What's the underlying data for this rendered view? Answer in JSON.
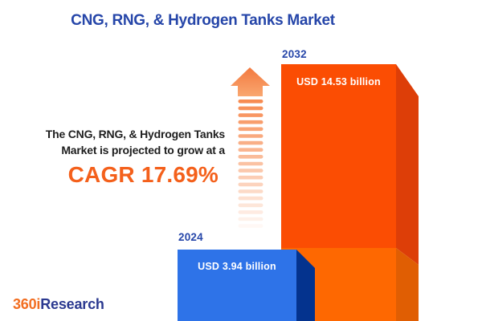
{
  "title": "CNG, RNG, & Hydrogen Tanks Market",
  "annotation": {
    "line1": "The CNG, RNG, & Hydrogen Tanks",
    "line2": "Market is projected to grow at a",
    "cagr": "CAGR 17.69%"
  },
  "bars": [
    {
      "year": "2024",
      "value_label": "USD 3.94 billion"
    },
    {
      "year": "2032",
      "value_label": "USD 14.53 billion"
    }
  ],
  "logo": {
    "part1": "360i",
    "part2": "Research"
  },
  "colors": {
    "title_blue": "#2646A9",
    "accent_orange": "#F4601B",
    "bar_2024_front": "#2E73E8",
    "bar_2024_side": "#04338E",
    "bar_2032_front_top": "#FB4D03",
    "bar_2032_front_bottom": "#FE6801",
    "bar_2032_side_top": "#DD3E08",
    "bar_2032_side_bottom": "#E05E03",
    "arrow_stripe": "#F78B51",
    "arrow_head_top": "#F3793F",
    "arrow_head_bottom": "#F9A770"
  },
  "chart_data": {
    "type": "bar",
    "categories": [
      "2024",
      "2032"
    ],
    "values": [
      3.94,
      14.53
    ],
    "unit": "USD billion",
    "data_labels": [
      "USD 3.94 billion",
      "USD 14.53 billion"
    ],
    "title": "CNG, RNG, & Hydrogen Tanks Market",
    "cagr_percent": 17.69,
    "annotation": "The CNG, RNG, & Hydrogen Tanks Market is projected to grow at a CAGR 17.69%",
    "xlabel": "",
    "ylabel": "",
    "legend": false,
    "grid": false
  }
}
